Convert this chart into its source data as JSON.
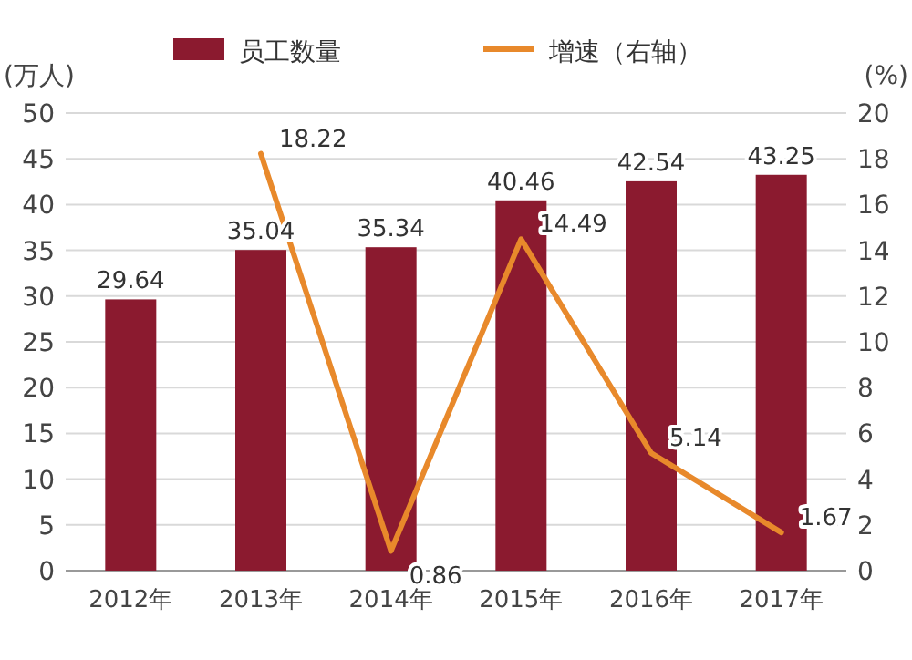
{
  "chart_data": {
    "type": "bar",
    "ylabel": "(万人)",
    "y2label": "(%)",
    "categories": [
      "2012年",
      "2013年",
      "2014年",
      "2015年",
      "2016年",
      "2017年"
    ],
    "series": [
      {
        "name": "员工数量",
        "color": "#8b1a2f",
        "values": [
          29.64,
          35.04,
          35.34,
          40.46,
          42.54,
          43.25
        ]
      },
      {
        "name": "增速（右轴）",
        "type": "line",
        "axis": "y2",
        "color": "#e8892b",
        "values": [
          null,
          18.22,
          0.86,
          14.49,
          5.14,
          1.67
        ]
      }
    ],
    "ylim": [
      0,
      50
    ],
    "yticks": [
      0,
      5,
      10,
      15,
      20,
      25,
      30,
      35,
      40,
      45,
      50
    ],
    "y2lim": [
      0,
      20
    ],
    "y2ticks": [
      0,
      2,
      4,
      6,
      8,
      10,
      12,
      14,
      16,
      18,
      20
    ],
    "grid": "y",
    "legend": "top",
    "data_labels": true,
    "marker": "none"
  }
}
